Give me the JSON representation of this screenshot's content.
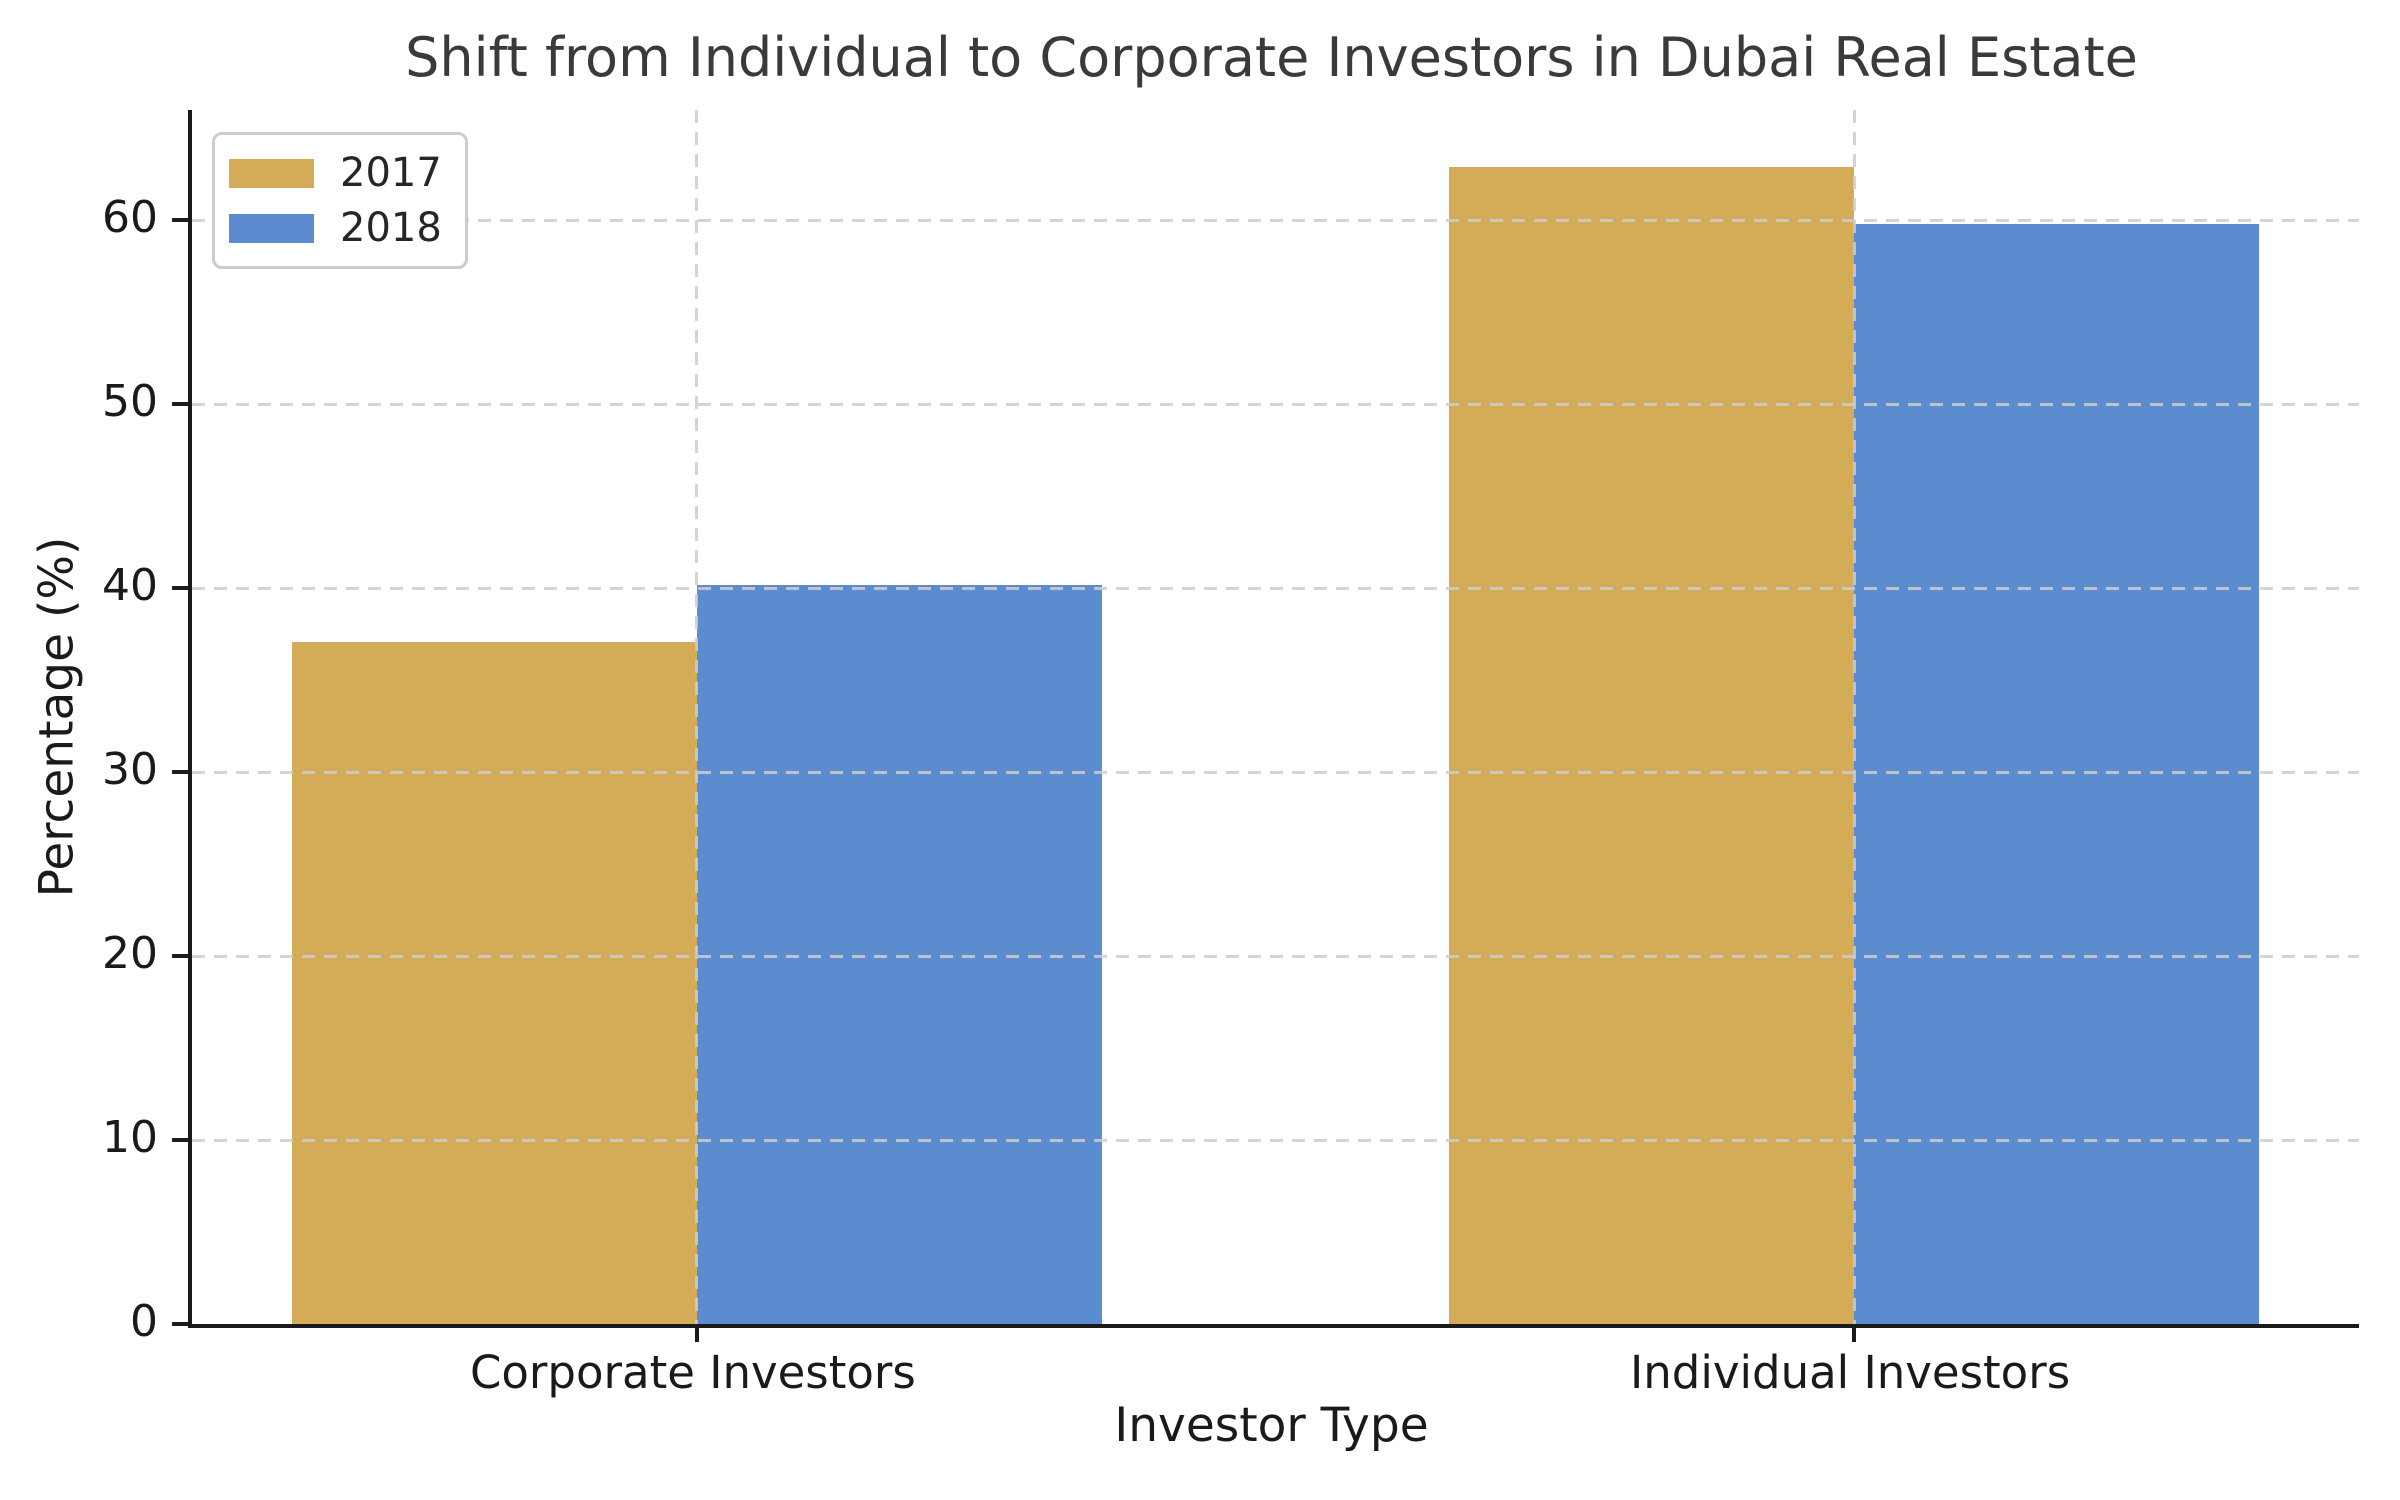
{
  "chart_data": {
    "type": "bar",
    "title": "Shift from Individual to Corporate Investors in Dubai Real Estate",
    "xlabel": "Investor Type",
    "ylabel": "Percentage (%)",
    "categories": [
      "Corporate Investors",
      "Individual Investors"
    ],
    "series": [
      {
        "name": "2017",
        "color": "#d4ac58",
        "values": [
          37.1,
          62.9
        ]
      },
      {
        "name": "2018",
        "color": "#5b8cd0",
        "values": [
          40.2,
          59.8
        ]
      }
    ],
    "yticks": [
      0,
      10,
      20,
      30,
      40,
      50,
      60
    ],
    "ylim": [
      0,
      66
    ],
    "grid": "dashed gray, horizontal and vertical, drawn above bars",
    "legend_position": "upper left",
    "bar_width_fraction": 0.35,
    "colors": {
      "series_2017": "#d4ac58",
      "series_2018": "#5b8cd0",
      "grid": "#cdcdcd",
      "axis": "#1a1a1a",
      "title_text": "#3a3a3a"
    }
  }
}
